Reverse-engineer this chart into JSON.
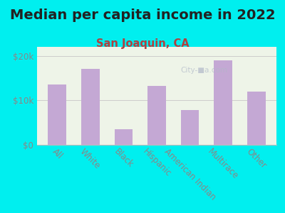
{
  "title": "Median per capita income in 2022",
  "subtitle": "San Joaquin, CA",
  "categories": [
    "All",
    "White",
    "Black",
    "Hispanic",
    "American Indian",
    "Multirace",
    "Other"
  ],
  "values": [
    13500,
    17000,
    3500,
    13200,
    7800,
    19000,
    12000
  ],
  "bar_color": "#c4a8d4",
  "background_outer": "#00efef",
  "background_inner": "#eef4e8",
  "tick_color": "#888888",
  "title_color": "#222222",
  "subtitle_color": "#b04040",
  "ylim": [
    0,
    22000
  ],
  "yticks": [
    0,
    10000,
    20000
  ],
  "ytick_labels": [
    "$0",
    "$10k",
    "$20k"
  ],
  "grid_color": "#cccccc",
  "title_fontsize": 14,
  "subtitle_fontsize": 10.5,
  "tick_fontsize": 8.5,
  "bar_width": 0.55
}
